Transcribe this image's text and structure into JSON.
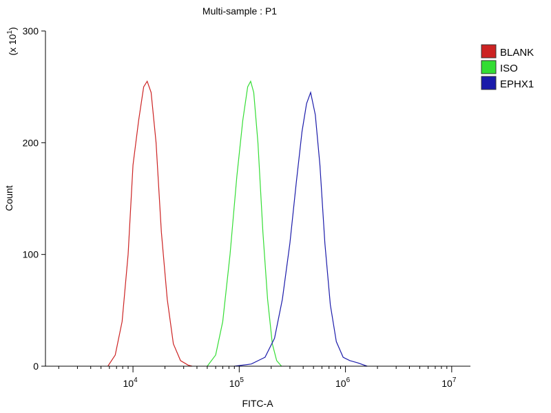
{
  "chart_data": {
    "type": "line",
    "title": "Multi-sample : P1",
    "xlabel": "FITC-A",
    "ylabel": "Count",
    "y_multiplier_label": "(x 10",
    "y_multiplier_exp": "1",
    "y_multiplier_close": ")",
    "x_scale": "log",
    "xlim": [
      1500,
      15000000
    ],
    "ylim": [
      0,
      300
    ],
    "x_tick_base": "10",
    "x_ticks": [
      {
        "value": 10000,
        "exp": "4"
      },
      {
        "value": 100000,
        "exp": "5"
      },
      {
        "value": 1000000,
        "exp": "6"
      },
      {
        "value": 10000000,
        "exp": "7"
      }
    ],
    "y_ticks": [
      {
        "value": 0,
        "label": "0"
      },
      {
        "value": 100,
        "label": "100"
      },
      {
        "value": 200,
        "label": "200"
      },
      {
        "value": 300,
        "label": "300"
      }
    ],
    "grid": false,
    "legend_position": "right",
    "series": [
      {
        "name": "BLANK",
        "color": "#cc2222",
        "x": [
          5800,
          6800,
          7900,
          9000,
          10000,
          11300,
          12600,
          13600,
          14800,
          16500,
          18500,
          21000,
          24000,
          28000,
          33000,
          36000
        ],
        "y": [
          0,
          10,
          40,
          100,
          180,
          220,
          250,
          255,
          245,
          200,
          120,
          60,
          20,
          5,
          1,
          0
        ]
      },
      {
        "name": "ISO",
        "color": "#33dd33",
        "x": [
          50000,
          60000,
          70000,
          82000,
          95000,
          108000,
          120000,
          128000,
          137000,
          150000,
          167000,
          185000,
          205000,
          225000,
          250000
        ],
        "y": [
          0,
          10,
          40,
          100,
          170,
          220,
          250,
          255,
          245,
          200,
          120,
          60,
          20,
          5,
          0
        ]
      },
      {
        "name": "EPHX1",
        "color": "#1a1aaa",
        "x": [
          90000,
          130000,
          175000,
          215000,
          255000,
          300000,
          345000,
          390000,
          430000,
          470000,
          520000,
          575000,
          640000,
          720000,
          820000,
          950000,
          1100000,
          1300000,
          1600000
        ],
        "y": [
          0,
          2,
          8,
          25,
          60,
          110,
          165,
          210,
          235,
          245,
          225,
          180,
          110,
          55,
          22,
          8,
          5,
          3,
          0
        ]
      }
    ]
  }
}
